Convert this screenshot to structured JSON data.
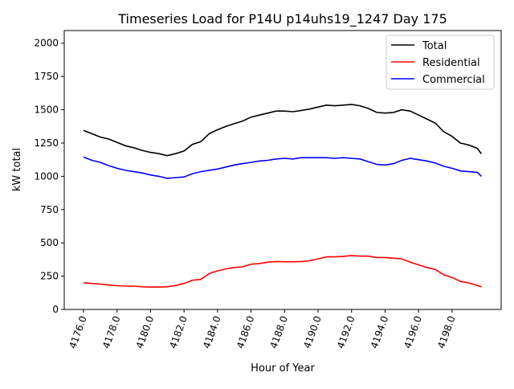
{
  "chart_data": {
    "type": "line",
    "title": "Timeseries Load for P14U p14uhs19_1247  Day 175",
    "xlabel": "Hour of Year",
    "ylabel": "kW total",
    "xlim": [
      4174.85,
      4200.93
    ],
    "ylim": [
      0,
      2095
    ],
    "grid": false,
    "legend_position": "top-right",
    "xticks": [
      4176,
      4178,
      4180,
      4182,
      4184,
      4186,
      4188,
      4190,
      4192,
      4194,
      4196,
      4198
    ],
    "xtick_labels": [
      "4176.0",
      "4178.0",
      "4180.0",
      "4182.0",
      "4184.0",
      "4186.0",
      "4188.0",
      "4190.0",
      "4192.0",
      "4194.0",
      "4196.0",
      "4198.0"
    ],
    "yticks": [
      0,
      250,
      500,
      750,
      1000,
      1250,
      1500,
      1750,
      2000
    ],
    "ytick_labels": [
      "0",
      "250",
      "500",
      "750",
      "1000",
      "1250",
      "1500",
      "1750",
      "2000"
    ],
    "x": [
      4176,
      4176.5,
      4177,
      4177.5,
      4178,
      4178.5,
      4179,
      4179.5,
      4180,
      4180.5,
      4181,
      4181.5,
      4182,
      4182.5,
      4183,
      4183.5,
      4184,
      4184.5,
      4185,
      4185.5,
      4186,
      4186.5,
      4187,
      4187.5,
      4188,
      4188.5,
      4189,
      4189.5,
      4190,
      4190.5,
      4191,
      4191.5,
      4192,
      4192.5,
      4193,
      4193.5,
      4194,
      4194.5,
      4195,
      4195.5,
      4196,
      4196.5,
      4197,
      4197.5,
      4198,
      4198.5,
      4199,
      4199.5,
      4199.75
    ],
    "series": [
      {
        "name": "Total",
        "color": "#000000",
        "values": [
          1345,
          1320,
          1295,
          1280,
          1255,
          1230,
          1215,
          1195,
          1180,
          1170,
          1155,
          1170,
          1190,
          1240,
          1260,
          1320,
          1350,
          1375,
          1395,
          1415,
          1445,
          1460,
          1475,
          1490,
          1490,
          1485,
          1495,
          1505,
          1520,
          1535,
          1530,
          1535,
          1540,
          1530,
          1510,
          1480,
          1475,
          1480,
          1500,
          1490,
          1460,
          1430,
          1400,
          1335,
          1300,
          1250,
          1235,
          1210,
          1170
        ]
      },
      {
        "name": "Residential",
        "color": "#ff0000",
        "values": [
          200,
          195,
          190,
          185,
          178,
          175,
          175,
          170,
          168,
          168,
          170,
          180,
          195,
          220,
          225,
          270,
          290,
          305,
          315,
          320,
          340,
          345,
          355,
          360,
          358,
          358,
          360,
          365,
          380,
          395,
          395,
          398,
          405,
          400,
          400,
          390,
          390,
          385,
          380,
          355,
          335,
          315,
          300,
          260,
          240,
          210,
          200,
          180,
          170
        ]
      },
      {
        "name": "Commercial",
        "color": "#0000ff",
        "values": [
          1145,
          1120,
          1105,
          1080,
          1060,
          1045,
          1035,
          1025,
          1010,
          1000,
          985,
          990,
          995,
          1020,
          1035,
          1045,
          1055,
          1070,
          1085,
          1095,
          1105,
          1115,
          1120,
          1130,
          1135,
          1130,
          1140,
          1140,
          1140,
          1140,
          1135,
          1140,
          1135,
          1130,
          1110,
          1090,
          1085,
          1095,
          1120,
          1135,
          1125,
          1115,
          1100,
          1075,
          1060,
          1040,
          1035,
          1030,
          1000
        ]
      }
    ]
  }
}
